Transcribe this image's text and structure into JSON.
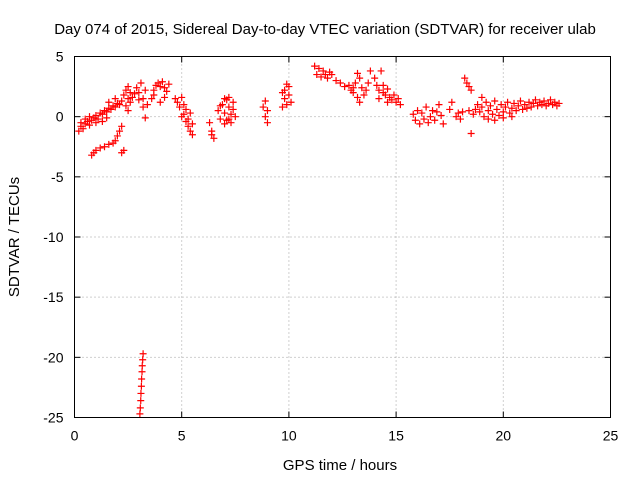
{
  "chart_data": {
    "type": "scatter",
    "title": "Day 074 of 2015, Sidereal Day-to-day VTEC variation (SDTVAR) for receiver ulab",
    "xlabel": "GPS time / hours",
    "ylabel": "SDTVAR / TECUs",
    "xlim": [
      0,
      25
    ],
    "ylim": [
      -25,
      5
    ],
    "xticks": [
      0,
      5,
      10,
      15,
      20,
      25
    ],
    "yticks": [
      -25,
      -20,
      -15,
      -10,
      -5,
      0,
      5
    ],
    "grid": true,
    "marker": "+",
    "series": [
      {
        "name": "SDTVAR",
        "color": "#ff0000",
        "points": [
          [
            0.2,
            -1.2
          ],
          [
            0.3,
            -0.8
          ],
          [
            0.4,
            -1.0
          ],
          [
            0.5,
            -0.6
          ],
          [
            0.6,
            -0.4
          ],
          [
            0.7,
            -0.7
          ],
          [
            0.8,
            -0.3
          ],
          [
            0.9,
            -0.1
          ],
          [
            1.0,
            0.1
          ],
          [
            1.1,
            -0.2
          ],
          [
            1.2,
            0.3
          ],
          [
            1.3,
            0.2
          ],
          [
            1.4,
            0.5
          ],
          [
            1.5,
            0.4
          ],
          [
            1.6,
            0.7
          ],
          [
            1.7,
            0.6
          ],
          [
            1.8,
            0.9
          ],
          [
            1.9,
            0.8
          ],
          [
            2.0,
            1.1
          ],
          [
            2.1,
            1.0
          ],
          [
            2.2,
            1.3
          ],
          [
            1.6,
            1.2
          ],
          [
            1.9,
            1.5
          ],
          [
            0.8,
            -3.2
          ],
          [
            0.9,
            -3.0
          ],
          [
            1.0,
            -2.8
          ],
          [
            1.2,
            -2.6
          ],
          [
            1.4,
            -2.5
          ],
          [
            1.6,
            -2.3
          ],
          [
            1.8,
            -2.2
          ],
          [
            1.9,
            -2.0
          ],
          [
            2.0,
            -1.6
          ],
          [
            2.1,
            -1.2
          ],
          [
            2.2,
            -0.8
          ],
          [
            0.3,
            -0.5
          ],
          [
            0.5,
            -0.2
          ],
          [
            0.7,
            0.0
          ],
          [
            1.0,
            -0.5
          ],
          [
            1.3,
            -0.4
          ],
          [
            1.5,
            -0.1
          ],
          [
            2.2,
            -3.0
          ],
          [
            2.3,
            -2.8
          ],
          [
            2.3,
            1.8
          ],
          [
            2.4,
            2.2
          ],
          [
            2.5,
            1.5
          ],
          [
            2.5,
            2.5
          ],
          [
            2.6,
            2.0
          ],
          [
            2.6,
            1.2
          ],
          [
            2.7,
            1.6
          ],
          [
            2.8,
            1.9
          ],
          [
            2.9,
            2.4
          ],
          [
            3.0,
            2.0
          ],
          [
            3.0,
            1.4
          ],
          [
            3.1,
            2.8
          ],
          [
            3.2,
            1.5
          ],
          [
            3.3,
            2.2
          ],
          [
            3.4,
            1.0
          ],
          [
            3.2,
            0.8
          ],
          [
            3.3,
            -0.1
          ],
          [
            2.5,
            0.5
          ],
          [
            2.4,
            0.9
          ],
          [
            3.05,
            -24.7
          ],
          [
            3.07,
            -24.2
          ],
          [
            3.09,
            -23.6
          ],
          [
            3.1,
            -23.0
          ],
          [
            3.12,
            -22.4
          ],
          [
            3.13,
            -21.8
          ],
          [
            3.15,
            -21.2
          ],
          [
            3.16,
            -20.7
          ],
          [
            3.18,
            -20.2
          ],
          [
            3.2,
            -19.7
          ],
          [
            3.6,
            1.5
          ],
          [
            3.7,
            2.2
          ],
          [
            3.8,
            2.6
          ],
          [
            3.9,
            2.8
          ],
          [
            4.0,
            2.5
          ],
          [
            4.1,
            2.9
          ],
          [
            4.2,
            2.4
          ],
          [
            4.3,
            2.1
          ],
          [
            4.4,
            2.7
          ],
          [
            3.7,
            1.8
          ],
          [
            4.0,
            1.2
          ],
          [
            4.2,
            1.6
          ],
          [
            4.7,
            1.5
          ],
          [
            4.8,
            1.2
          ],
          [
            4.9,
            0.8
          ],
          [
            5.0,
            1.6
          ],
          [
            5.1,
            1.0
          ],
          [
            5.2,
            0.6
          ],
          [
            5.1,
            0.2
          ],
          [
            5.0,
            0.0
          ],
          [
            5.2,
            -0.4
          ],
          [
            5.3,
            -0.8
          ],
          [
            5.4,
            -1.2
          ],
          [
            5.5,
            -1.5
          ],
          [
            5.3,
            -0.2
          ],
          [
            5.4,
            0.3
          ],
          [
            5.5,
            -0.6
          ],
          [
            6.3,
            -0.5
          ],
          [
            6.4,
            -1.2
          ],
          [
            6.5,
            -1.8
          ],
          [
            6.4,
            -1.5
          ],
          [
            6.7,
            0.5
          ],
          [
            6.8,
            -0.2
          ],
          [
            6.9,
            1.0
          ],
          [
            7.0,
            0.3
          ],
          [
            7.0,
            -0.6
          ],
          [
            7.1,
            1.4
          ],
          [
            7.1,
            -0.3
          ],
          [
            7.2,
            0.8
          ],
          [
            7.2,
            1.6
          ],
          [
            7.3,
            -0.5
          ],
          [
            7.3,
            0.2
          ],
          [
            7.4,
            1.2
          ],
          [
            7.4,
            0.6
          ],
          [
            7.5,
            0.0
          ],
          [
            6.8,
            0.9
          ],
          [
            7.0,
            1.5
          ],
          [
            7.2,
            -0.2
          ],
          [
            8.8,
            0.8
          ],
          [
            8.9,
            0.0
          ],
          [
            8.9,
            1.3
          ],
          [
            9.0,
            -0.5
          ],
          [
            9.0,
            0.5
          ],
          [
            9.7,
            0.8
          ],
          [
            9.8,
            1.5
          ],
          [
            9.8,
            2.2
          ],
          [
            9.9,
            1.0
          ],
          [
            9.9,
            2.7
          ],
          [
            10.0,
            1.8
          ],
          [
            10.0,
            2.5
          ],
          [
            10.1,
            1.2
          ],
          [
            9.7,
            2.0
          ],
          [
            11.2,
            4.2
          ],
          [
            11.3,
            3.5
          ],
          [
            11.4,
            4.0
          ],
          [
            11.5,
            3.3
          ],
          [
            11.6,
            3.8
          ],
          [
            11.7,
            3.5
          ],
          [
            11.8,
            3.2
          ],
          [
            11.9,
            3.7
          ],
          [
            12.0,
            3.5
          ],
          [
            12.2,
            3.0
          ],
          [
            12.4,
            2.8
          ],
          [
            12.6,
            2.5
          ],
          [
            12.8,
            2.6
          ],
          [
            12.9,
            2.2
          ],
          [
            13.0,
            2.4
          ],
          [
            13.1,
            2.8
          ],
          [
            13.2,
            3.6
          ],
          [
            13.3,
            3.2
          ],
          [
            13.4,
            2.4
          ],
          [
            13.5,
            1.8
          ],
          [
            13.6,
            2.2
          ],
          [
            13.7,
            2.8
          ],
          [
            13.8,
            3.8
          ],
          [
            13.0,
            2.0
          ],
          [
            13.3,
            1.2
          ],
          [
            13.2,
            1.6
          ],
          [
            14.0,
            3.2
          ],
          [
            14.1,
            2.6
          ],
          [
            14.2,
            2.2
          ],
          [
            14.3,
            3.8
          ],
          [
            14.4,
            2.0
          ],
          [
            14.5,
            1.8
          ],
          [
            14.6,
            2.3
          ],
          [
            14.7,
            1.6
          ],
          [
            14.8,
            1.4
          ],
          [
            14.9,
            1.8
          ],
          [
            15.0,
            1.2
          ],
          [
            15.1,
            1.5
          ],
          [
            15.2,
            1.0
          ],
          [
            14.4,
            2.6
          ],
          [
            14.6,
            1.2
          ],
          [
            14.2,
            1.5
          ],
          [
            15.8,
            0.2
          ],
          [
            15.9,
            -0.3
          ],
          [
            16.0,
            0.5
          ],
          [
            16.1,
            -0.6
          ],
          [
            16.2,
            0.3
          ],
          [
            16.3,
            -0.2
          ],
          [
            16.4,
            0.8
          ],
          [
            16.5,
            -0.5
          ],
          [
            16.6,
            0.0
          ],
          [
            16.7,
            0.5
          ],
          [
            16.8,
            -0.3
          ],
          [
            16.9,
            0.4
          ],
          [
            17.1,
            0.1
          ],
          [
            17.2,
            -0.6
          ],
          [
            17.0,
            1.0
          ],
          [
            17.5,
            0.6
          ],
          [
            17.6,
            1.2
          ],
          [
            17.8,
            0.0
          ],
          [
            17.9,
            0.3
          ],
          [
            18.0,
            -0.2
          ],
          [
            18.1,
            0.4
          ],
          [
            18.2,
            3.2
          ],
          [
            18.3,
            2.8
          ],
          [
            18.4,
            2.5
          ],
          [
            18.5,
            2.2
          ],
          [
            18.4,
            0.5
          ],
          [
            18.5,
            -1.4
          ],
          [
            18.6,
            0.2
          ],
          [
            18.7,
            0.6
          ],
          [
            18.8,
            1.0
          ],
          [
            18.9,
            0.4
          ],
          [
            19.0,
            0.8
          ],
          [
            19.1,
            0.0
          ],
          [
            19.2,
            1.2
          ],
          [
            19.3,
            0.5
          ],
          [
            19.4,
            0.9
          ],
          [
            19.5,
            0.2
          ],
          [
            19.6,
            1.3
          ],
          [
            19.7,
            0.6
          ],
          [
            19.8,
            0.1
          ],
          [
            19.9,
            1.0
          ],
          [
            20.0,
            0.4
          ],
          [
            20.1,
            0.8
          ],
          [
            20.2,
            1.2
          ],
          [
            20.3,
            0.3
          ],
          [
            20.4,
            0.7
          ],
          [
            20.5,
            1.1
          ],
          [
            20.6,
            0.5
          ],
          [
            20.7,
            0.9
          ],
          [
            20.8,
            1.3
          ],
          [
            20.9,
            0.6
          ],
          [
            21.0,
            1.0
          ],
          [
            21.1,
            0.7
          ],
          [
            21.2,
            1.2
          ],
          [
            21.3,
            0.8
          ],
          [
            21.4,
            1.1
          ],
          [
            21.5,
            1.4
          ],
          [
            21.6,
            0.9
          ],
          [
            21.7,
            1.2
          ],
          [
            21.8,
            1.0
          ],
          [
            21.9,
            1.3
          ],
          [
            22.0,
            0.9
          ],
          [
            22.1,
            1.1
          ],
          [
            22.2,
            1.4
          ],
          [
            22.3,
            1.0
          ],
          [
            22.4,
            1.2
          ],
          [
            22.5,
            0.9
          ],
          [
            22.6,
            1.1
          ],
          [
            19.3,
            -0.2
          ],
          [
            19.6,
            -0.3
          ],
          [
            20.0,
            -0.1
          ],
          [
            20.4,
            0.0
          ],
          [
            19.0,
            1.6
          ]
        ]
      }
    ]
  }
}
